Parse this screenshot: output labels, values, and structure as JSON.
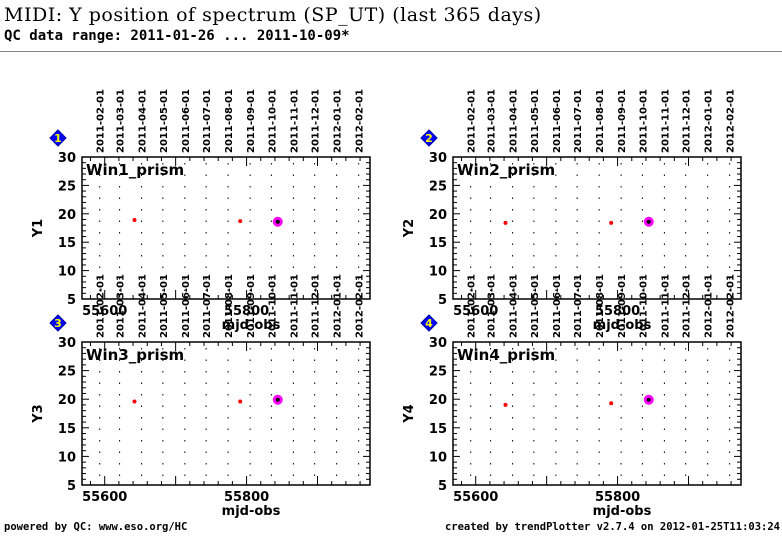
{
  "header": {
    "title": "MIDI: Y position of spectrum (SP_UT) (last 365 days)",
    "subtitle": "QC data range: 2011-01-26 ... 2011-10-09*"
  },
  "footer": {
    "left": "powered by QC: www.eso.org/HC",
    "right": "created by trendPlotter v2.7.4 on 2012-01-25T11:03:24"
  },
  "colors": {
    "normal_point": "#ff0000",
    "latest_point_halo": "#ff00ff",
    "latest_point_core": "#000000",
    "panel_marker": "#0000ff",
    "panel_marker_text": "#ffff00"
  },
  "chart_data": [
    {
      "type": "scatter",
      "panel_number": "1",
      "annotation": "Win1_prism",
      "xlabel": "mjd-obs",
      "ylabel": "Y1",
      "xlim": [
        55568,
        55974
      ],
      "ylim": [
        5,
        30
      ],
      "xticks": [
        55600,
        55800
      ],
      "yticks": [
        5,
        10,
        15,
        20,
        25,
        30
      ],
      "top_date_ticks": [
        {
          "label": "2011-02-01",
          "mjd": 55593
        },
        {
          "label": "2011-03-01",
          "mjd": 55621
        },
        {
          "label": "2011-04-01",
          "mjd": 55652
        },
        {
          "label": "2011-05-01",
          "mjd": 55682
        },
        {
          "label": "2011-06-01",
          "mjd": 55713
        },
        {
          "label": "2011-07-01",
          "mjd": 55743
        },
        {
          "label": "2011-08-01",
          "mjd": 55774
        },
        {
          "label": "2011-09-01",
          "mjd": 55805
        },
        {
          "label": "2011-10-01",
          "mjd": 55835
        },
        {
          "label": "2011-11-01",
          "mjd": 55866
        },
        {
          "label": "2011-12-01",
          "mjd": 55896
        },
        {
          "label": "2012-01-01",
          "mjd": 55927
        },
        {
          "label": "2012-02-01",
          "mjd": 55958
        }
      ],
      "points": [
        {
          "x": 55642,
          "y": 18.9,
          "latest": false
        },
        {
          "x": 55791,
          "y": 18.7,
          "latest": false
        },
        {
          "x": 55844,
          "y": 18.6,
          "latest": true
        }
      ]
    },
    {
      "type": "scatter",
      "panel_number": "2",
      "annotation": "Win2_prism",
      "xlabel": "mjd-obs",
      "ylabel": "Y2",
      "xlim": [
        55568,
        55974
      ],
      "ylim": [
        5,
        30
      ],
      "xticks": [
        55600,
        55800
      ],
      "yticks": [
        5,
        10,
        15,
        20,
        25,
        30
      ],
      "top_date_ticks": [
        {
          "label": "2011-02-01",
          "mjd": 55593
        },
        {
          "label": "2011-03-01",
          "mjd": 55621
        },
        {
          "label": "2011-04-01",
          "mjd": 55652
        },
        {
          "label": "2011-05-01",
          "mjd": 55682
        },
        {
          "label": "2011-06-01",
          "mjd": 55713
        },
        {
          "label": "2011-07-01",
          "mjd": 55743
        },
        {
          "label": "2011-08-01",
          "mjd": 55774
        },
        {
          "label": "2011-09-01",
          "mjd": 55805
        },
        {
          "label": "2011-10-01",
          "mjd": 55835
        },
        {
          "label": "2011-11-01",
          "mjd": 55866
        },
        {
          "label": "2011-12-01",
          "mjd": 55896
        },
        {
          "label": "2012-01-01",
          "mjd": 55927
        },
        {
          "label": "2012-02-01",
          "mjd": 55958
        }
      ],
      "points": [
        {
          "x": 55642,
          "y": 18.4,
          "latest": false
        },
        {
          "x": 55791,
          "y": 18.4,
          "latest": false
        },
        {
          "x": 55844,
          "y": 18.6,
          "latest": true
        }
      ]
    },
    {
      "type": "scatter",
      "panel_number": "3",
      "annotation": "Win3_prism",
      "xlabel": "mjd-obs",
      "ylabel": "Y3",
      "xlim": [
        55568,
        55974
      ],
      "ylim": [
        5,
        30
      ],
      "xticks": [
        55600,
        55800
      ],
      "yticks": [
        5,
        10,
        15,
        20,
        25,
        30
      ],
      "top_date_ticks": [
        {
          "label": "2011-02-01",
          "mjd": 55593
        },
        {
          "label": "2011-03-01",
          "mjd": 55621
        },
        {
          "label": "2011-04-01",
          "mjd": 55652
        },
        {
          "label": "2011-05-01",
          "mjd": 55682
        },
        {
          "label": "2011-06-01",
          "mjd": 55713
        },
        {
          "label": "2011-07-01",
          "mjd": 55743
        },
        {
          "label": "2011-08-01",
          "mjd": 55774
        },
        {
          "label": "2011-09-01",
          "mjd": 55805
        },
        {
          "label": "2011-10-01",
          "mjd": 55835
        },
        {
          "label": "2011-11-01",
          "mjd": 55866
        },
        {
          "label": "2011-12-01",
          "mjd": 55896
        },
        {
          "label": "2012-01-01",
          "mjd": 55927
        },
        {
          "label": "2012-02-01",
          "mjd": 55958
        }
      ],
      "points": [
        {
          "x": 55642,
          "y": 19.6,
          "latest": false
        },
        {
          "x": 55791,
          "y": 19.6,
          "latest": false
        },
        {
          "x": 55844,
          "y": 19.9,
          "latest": true
        }
      ]
    },
    {
      "type": "scatter",
      "panel_number": "4",
      "annotation": "Win4_prism",
      "xlabel": "mjd-obs",
      "ylabel": "Y4",
      "xlim": [
        55568,
        55974
      ],
      "ylim": [
        5,
        30
      ],
      "xticks": [
        55600,
        55800
      ],
      "yticks": [
        5,
        10,
        15,
        20,
        25,
        30
      ],
      "top_date_ticks": [
        {
          "label": "2011-02-01",
          "mjd": 55593
        },
        {
          "label": "2011-03-01",
          "mjd": 55621
        },
        {
          "label": "2011-04-01",
          "mjd": 55652
        },
        {
          "label": "2011-05-01",
          "mjd": 55682
        },
        {
          "label": "2011-06-01",
          "mjd": 55713
        },
        {
          "label": "2011-07-01",
          "mjd": 55743
        },
        {
          "label": "2011-08-01",
          "mjd": 55774
        },
        {
          "label": "2011-09-01",
          "mjd": 55805
        },
        {
          "label": "2011-10-01",
          "mjd": 55835
        },
        {
          "label": "2011-11-01",
          "mjd": 55866
        },
        {
          "label": "2011-12-01",
          "mjd": 55896
        },
        {
          "label": "2012-01-01",
          "mjd": 55927
        },
        {
          "label": "2012-02-01",
          "mjd": 55958
        }
      ],
      "points": [
        {
          "x": 55642,
          "y": 19.0,
          "latest": false
        },
        {
          "x": 55791,
          "y": 19.3,
          "latest": false
        },
        {
          "x": 55844,
          "y": 19.9,
          "latest": true
        }
      ]
    }
  ]
}
